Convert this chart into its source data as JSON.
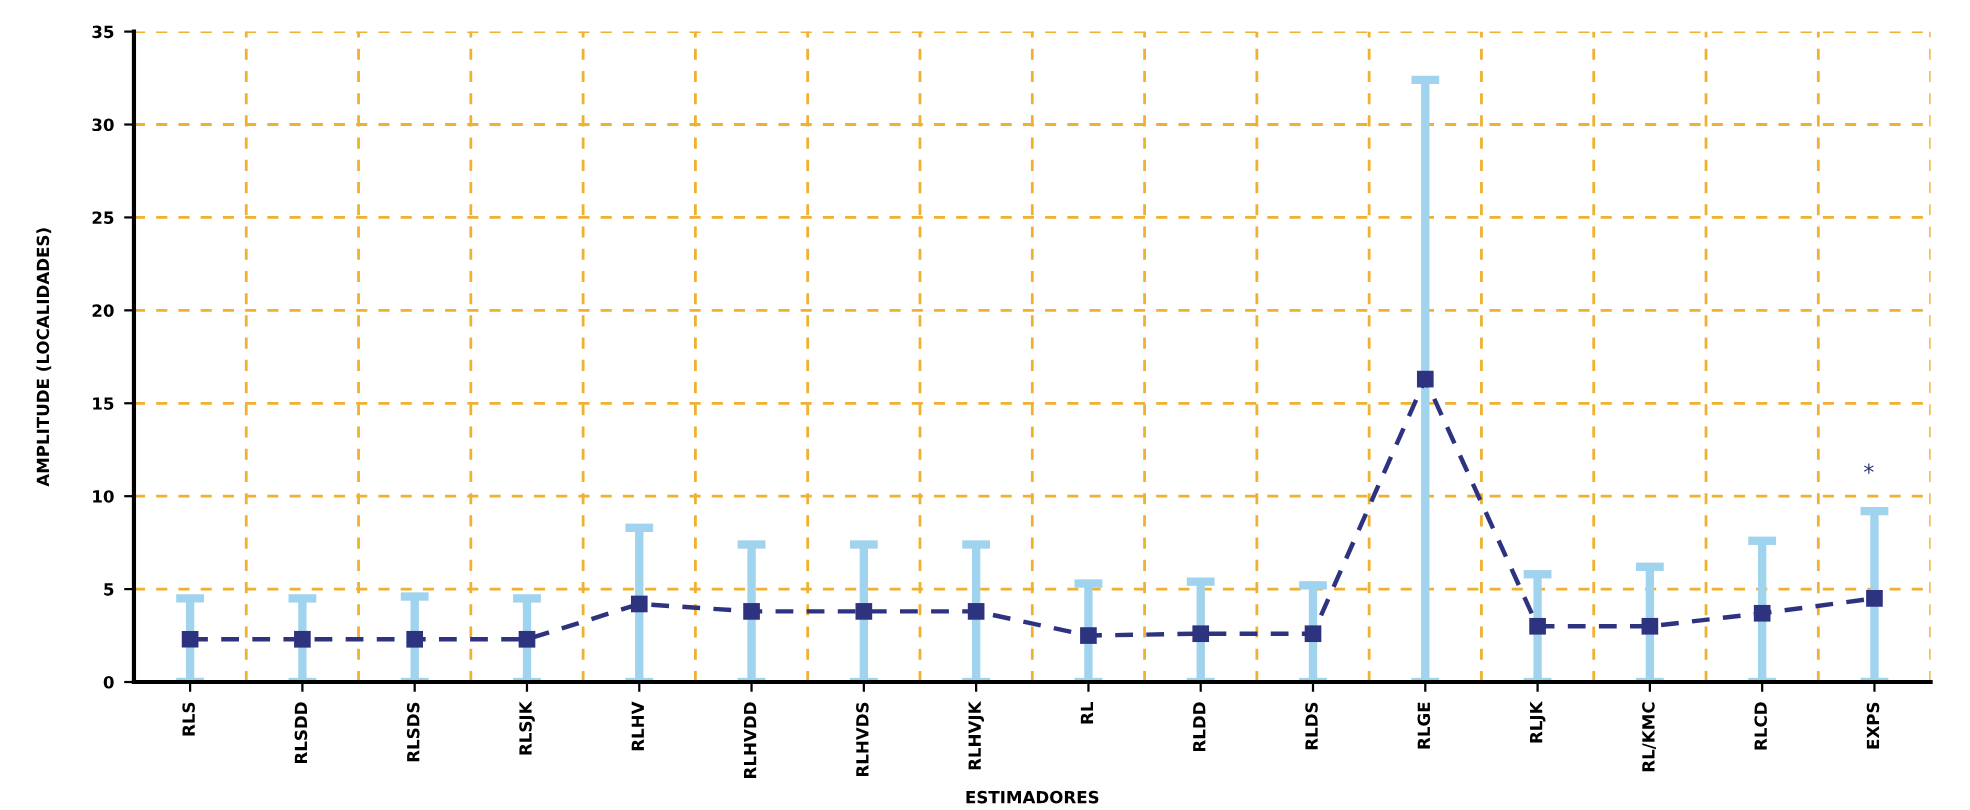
{
  "chart_data": {
    "type": "line",
    "xlabel": "ESTIMADORES",
    "ylabel": "AMPLITUDE (LOCALIDADES)",
    "categories": [
      "RLS",
      "RLSDD",
      "RLSDS",
      "RLSJK",
      "RLHV",
      "RLHVDD",
      "RLHVDS",
      "RLHVJK",
      "RL",
      "RLDD",
      "RLDS",
      "RLGE",
      "RLJK",
      "RL/KMC",
      "RLCD",
      "EXPS"
    ],
    "series": [
      {
        "color": "#2e3380",
        "line_style": "dashed",
        "marker": "square",
        "values": [
          2.3,
          2.3,
          2.3,
          2.3,
          4.2,
          3.8,
          3.8,
          3.8,
          2.5,
          2.6,
          2.6,
          16.3,
          3.0,
          3.0,
          3.7,
          4.5
        ],
        "errors": [
          [
            0,
            4.5
          ],
          [
            0,
            4.5
          ],
          [
            0,
            4.6
          ],
          [
            0,
            4.5
          ],
          [
            0,
            8.3
          ],
          [
            0,
            7.4
          ],
          [
            0,
            7.4
          ],
          [
            0,
            7.4
          ],
          [
            0,
            5.3
          ],
          [
            0,
            5.4
          ],
          [
            0,
            5.2
          ],
          [
            0,
            32.4
          ],
          [
            0,
            5.8
          ],
          [
            0,
            6.2
          ],
          [
            0,
            7.6
          ],
          [
            0,
            9.2
          ]
        ]
      }
    ],
    "annotations": [
      "*"
    ],
    "ylim": [
      0,
      35
    ],
    "yticks": [
      0,
      5,
      10,
      15,
      20,
      25,
      30,
      35
    ],
    "grid": true
  }
}
